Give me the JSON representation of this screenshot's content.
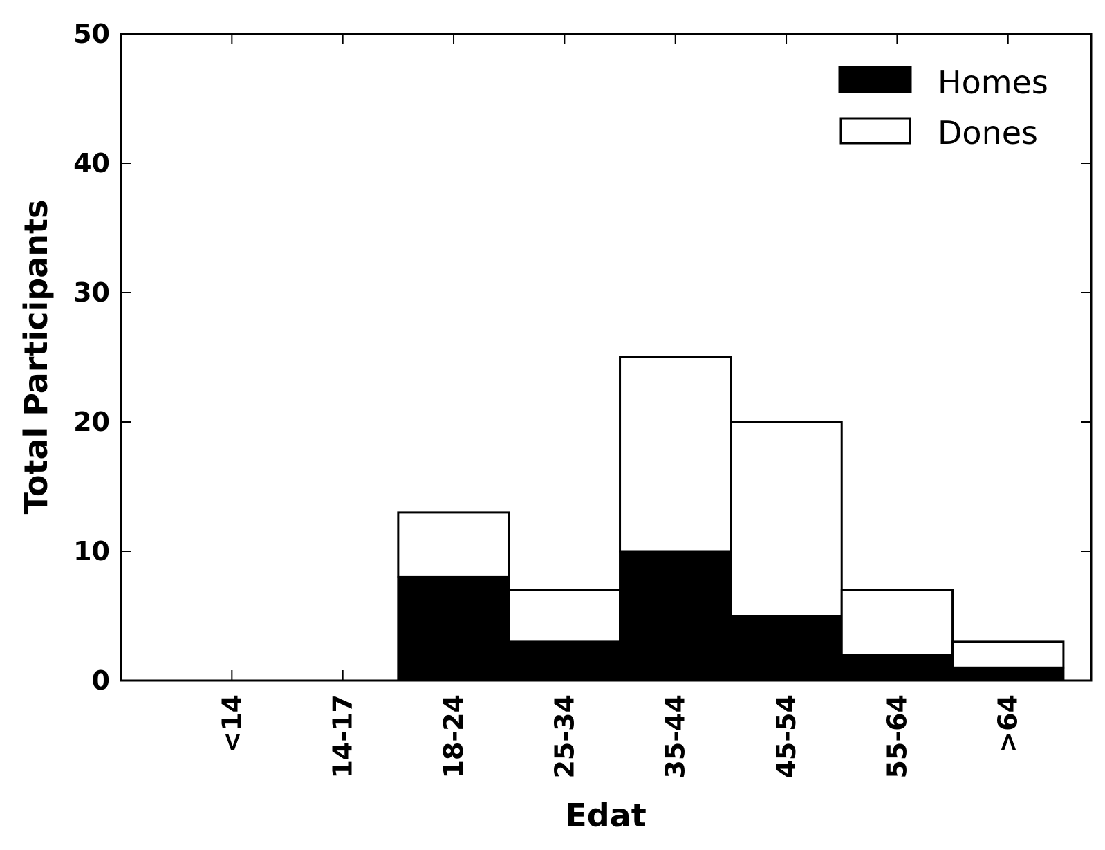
{
  "chart_data": {
    "type": "bar",
    "stacked": true,
    "title": "",
    "xlabel": "Edat",
    "ylabel": "Total Participants",
    "categories": [
      "<14",
      "14-17",
      "18-24",
      "25-34",
      "35-44",
      "45-54",
      "55-64",
      ">64"
    ],
    "series": [
      {
        "name": "Homes",
        "color": "#000000",
        "values": [
          0,
          0,
          8,
          3,
          10,
          5,
          2,
          1
        ]
      },
      {
        "name": "Dones",
        "color": "#ffffff",
        "values": [
          0,
          0,
          5,
          4,
          15,
          15,
          5,
          2
        ]
      }
    ],
    "ylim": [
      0,
      50
    ],
    "yticks": [
      0,
      10,
      20,
      30,
      40,
      50
    ],
    "grid": false,
    "legend_position": "top-right"
  }
}
